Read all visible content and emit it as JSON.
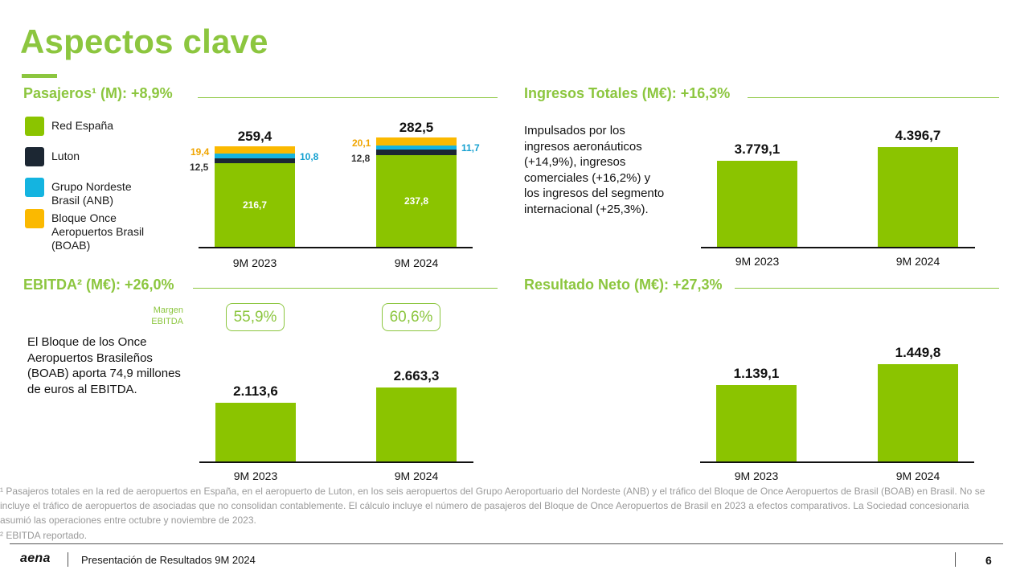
{
  "title": "Aspectos clave",
  "sections": {
    "pasajeros": {
      "title": "Pasajeros¹ (M): +8,9%",
      "legend": [
        {
          "label": "Red España",
          "color": "#8bc400"
        },
        {
          "label": "Luton",
          "color": "#1c2733"
        },
        {
          "label": "Grupo Nordeste\nBrasil (ANB)",
          "color": "#14b4e0"
        },
        {
          "label": "Bloque Once\nAeropuertos Brasil\n(BOAB)",
          "color": "#fbb900"
        }
      ]
    },
    "ingresos": {
      "title": "Ingresos Totales (M€): +16,3%",
      "description": "Impulsados por los\ningresos aeronáuticos\n(+14,9%), ingresos\ncomerciales (+16,2%) y\nlos ingresos del segmento\ninternacional (+25,3%)."
    },
    "ebitda": {
      "title": "EBITDA² (M€): +26,0%",
      "margin_label": "Margen\nEBITDA",
      "margins": [
        "55,9%",
        "60,6%"
      ],
      "description": "El Bloque de los Once\nAeropuertos Brasileños\n(BOAB) aporta 74,9 millones\nde euros al EBITDA."
    },
    "resultado": {
      "title": "Resultado Neto (M€): +27,3%"
    }
  },
  "chart_data": [
    {
      "type": "bar",
      "stacked": true,
      "categories": [
        "9M 2023",
        "9M 2024"
      ],
      "totals": [
        "259,4",
        "282,5"
      ],
      "series": [
        {
          "name": "Red España",
          "values": [
            216.7,
            237.8
          ],
          "labels": [
            "216,7",
            "237,8"
          ],
          "color": "#8bc400"
        },
        {
          "name": "Luton",
          "values": [
            12.5,
            12.8
          ],
          "labels": [
            "12,5",
            "12,8"
          ],
          "color": "#1c2733"
        },
        {
          "name": "Grupo Nordeste Brasil (ANB)",
          "values": [
            10.8,
            11.7
          ],
          "labels": [
            "10,8",
            "11,7"
          ],
          "color": "#14b4e0"
        },
        {
          "name": "Bloque Once Aeropuertos Brasil (BOAB)",
          "values": [
            19.4,
            20.1
          ],
          "labels": [
            "19,4",
            "20,1"
          ],
          "color": "#fbb900"
        }
      ]
    },
    {
      "type": "bar",
      "categories": [
        "9M 2023",
        "9M 2024"
      ],
      "values": [
        3779.1,
        4396.7
      ],
      "labels": [
        "3.779,1",
        "4.396,7"
      ]
    },
    {
      "type": "bar",
      "categories": [
        "9M 2023",
        "9M 2024"
      ],
      "values": [
        2113.6,
        2663.3
      ],
      "labels": [
        "2.113,6",
        "2.663,3"
      ]
    },
    {
      "type": "bar",
      "categories": [
        "9M 2023",
        "9M 2024"
      ],
      "values": [
        1139.1,
        1449.8
      ],
      "labels": [
        "1.139,1",
        "1.449,8"
      ]
    }
  ],
  "footnotes": [
    "¹ Pasajeros totales en la red de aeropuertos en España, en el aeropuerto de Luton, en los seis aeropuertos del Grupo Aeroportuario del Nordeste (ANB) y el tráfico del Bloque de Once Aeropuertos de Brasil (BOAB) en Brasil. No se incluye el tráfico de aeropuertos de asociadas que no consolidan contablemente. El cálculo incluye el número de pasajeros del Bloque de Once Aeropuertos de Brasil en 2023 a efectos comparativos. La Sociedad concesionaria asumió las operaciones entre octubre y noviembre de 2023.",
    "² EBITDA reportado."
  ],
  "footer": {
    "logo": "aena",
    "presentation": "Presentación de Resultados 9M 2024",
    "page": "6"
  },
  "colors": {
    "accent": "#8cc63f",
    "bar": "#8bc400"
  }
}
